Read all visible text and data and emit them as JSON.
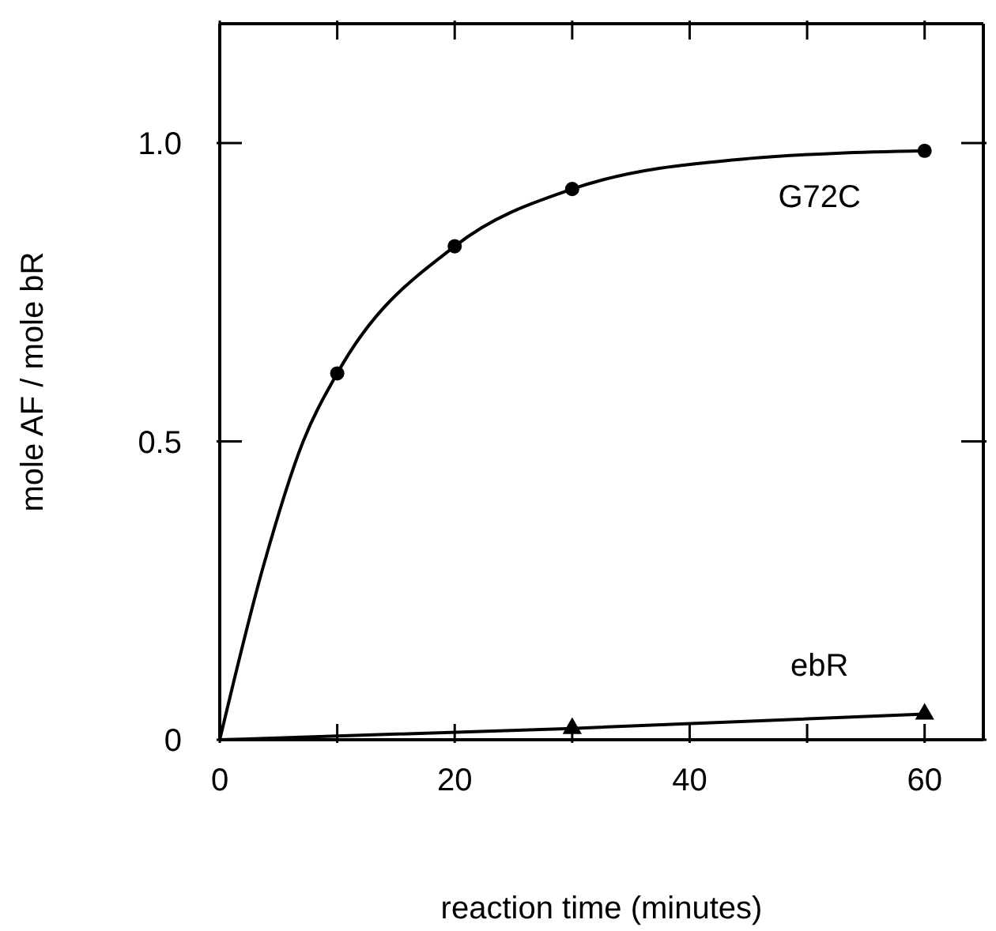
{
  "chart_data": {
    "type": "scatter",
    "xlabel": "reaction  time  (minutes)",
    "ylabel": "mole AF / mole bR",
    "xlim": [
      0,
      65
    ],
    "xticks": [
      0,
      {
        "value": 10,
        "label": null
      },
      20,
      {
        "value": 30,
        "label": null
      },
      40,
      {
        "value": 50,
        "label": null
      },
      60
    ],
    "ylim": [
      0,
      1.2
    ],
    "yticks": [
      0,
      0.5,
      {
        "value": 1,
        "label": "1.0"
      }
    ],
    "series": [
      {
        "name": "G72C",
        "marker": "circle",
        "color": "#000000",
        "x": [
          10,
          20,
          30,
          60
        ],
        "values": [
          0.614,
          0.827,
          0.923,
          0.987
        ]
      },
      {
        "type": "line",
        "marker": "none",
        "color": "#000000",
        "x": [
          0,
          3.7,
          7.1,
          10,
          20,
          30,
          45,
          60
        ],
        "values": [
          0,
          0.29,
          0.5,
          0.614,
          0.827,
          0.923,
          0.974,
          0.987
        ]
      },
      {
        "name": "ebR",
        "marker": "triangle",
        "color": "#000000",
        "x": [
          30,
          60
        ],
        "values": [
          0.019,
          0.043
        ]
      },
      {
        "type": "line",
        "marker": "none",
        "color": "#000000",
        "x": [
          0,
          30,
          60
        ],
        "values": [
          0,
          0.019,
          0.043
        ]
      }
    ]
  }
}
